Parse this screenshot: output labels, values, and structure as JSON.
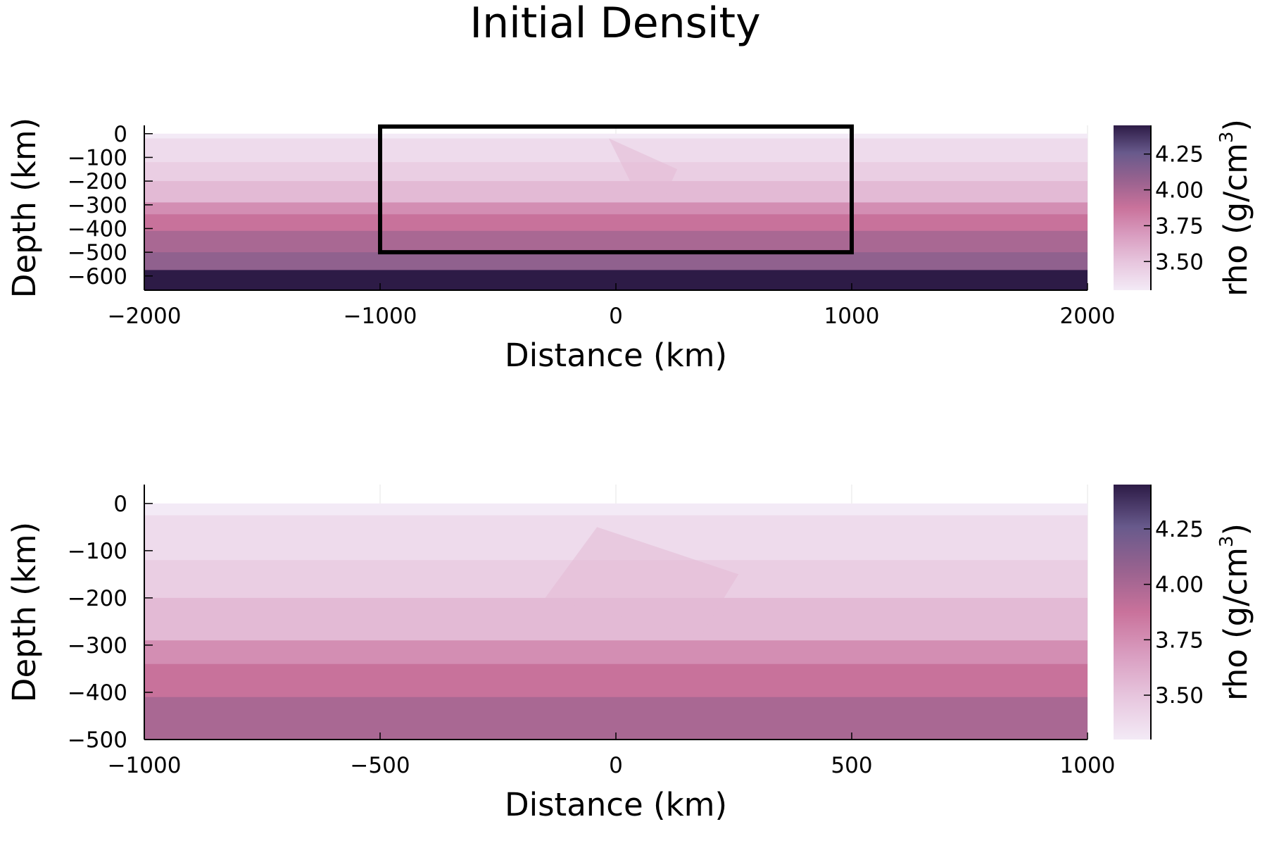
{
  "chart_data": {
    "type": "heatmap",
    "title": "Initial Density",
    "colormap": [
      "#f3eaf6",
      "#e7c6de",
      "#d99dc0",
      "#c9729b",
      "#98628f",
      "#685a8c",
      "#2d1b46"
    ],
    "color_range": [
      3.3,
      4.45
    ],
    "panels": [
      {
        "xlabel": "Distance (km)",
        "ylabel": "Depth (km)",
        "colorbar_label": "rho (g/cm",
        "colorbar_label_sup": "3",
        "colorbar_label_end": ")",
        "xlim": [
          -2000,
          2000
        ],
        "ylim": [
          -660,
          35
        ],
        "x_ticks": [
          -2000,
          -1000,
          0,
          1000,
          2000
        ],
        "x_tick_labels": [
          "−2000",
          "−1000",
          "0",
          "1000",
          "2000"
        ],
        "y_ticks": [
          0,
          -100,
          -200,
          -300,
          -400,
          -500,
          -600
        ],
        "y_tick_labels": [
          "0",
          "−100",
          "−200",
          "−300",
          "−400",
          "−500",
          "−600"
        ],
        "colorbar_ticks": [
          4.25,
          4.0,
          3.75,
          3.5
        ],
        "colorbar_tick_labels": [
          "4.25",
          "4.00",
          "3.75",
          "3.50"
        ],
        "domain": {
          "x": [
            -2000,
            2000
          ],
          "y": [
            -660,
            0
          ]
        },
        "layers": [
          {
            "top": 0,
            "bottom": -20,
            "rho": 3.3
          },
          {
            "top": -20,
            "bottom": -120,
            "rho": 3.38
          },
          {
            "top": -120,
            "bottom": -200,
            "rho": 3.45
          },
          {
            "top": -200,
            "bottom": -290,
            "rho": 3.55
          },
          {
            "top": -290,
            "bottom": -340,
            "rho": 3.75
          },
          {
            "top": -340,
            "bottom": -410,
            "rho": 3.88
          },
          {
            "top": -410,
            "bottom": -500,
            "rho": 4.0
          },
          {
            "top": -500,
            "bottom": -575,
            "rho": 4.1
          },
          {
            "top": -575,
            "bottom": -660,
            "rho": 4.45
          }
        ],
        "anomaly": [
          [
            -30,
            -20
          ],
          [
            260,
            -150
          ],
          [
            200,
            -280
          ],
          [
            60,
            -200
          ],
          [
            -30,
            -20
          ]
        ],
        "anomaly_rho": 3.55,
        "box": {
          "x": [
            -1000,
            1000
          ],
          "y": [
            -500,
            30
          ]
        }
      },
      {
        "xlabel": "Distance (km)",
        "ylabel": "Depth (km)",
        "colorbar_label": "rho (g/cm",
        "colorbar_label_sup": "3",
        "colorbar_label_end": ")",
        "xlim": [
          -1000,
          1000
        ],
        "ylim": [
          -500,
          40
        ],
        "x_ticks": [
          -1000,
          -500,
          0,
          500,
          1000
        ],
        "x_tick_labels": [
          "−1000",
          "−500",
          "0",
          "500",
          "1000"
        ],
        "y_ticks": [
          0,
          -100,
          -200,
          -300,
          -400,
          -500
        ],
        "y_tick_labels": [
          "0",
          "−100",
          "−200",
          "−300",
          "−400",
          "−500"
        ],
        "colorbar_ticks": [
          4.25,
          4.0,
          3.75,
          3.5
        ],
        "colorbar_tick_labels": [
          "4.25",
          "4.00",
          "3.75",
          "3.50"
        ],
        "domain": {
          "x": [
            -1000,
            1000
          ],
          "y": [
            -500,
            0
          ]
        },
        "layers": [
          {
            "top": 0,
            "bottom": -25,
            "rho": 3.3
          },
          {
            "top": -25,
            "bottom": -120,
            "rho": 3.38
          },
          {
            "top": -120,
            "bottom": -200,
            "rho": 3.45
          },
          {
            "top": -200,
            "bottom": -290,
            "rho": 3.55
          },
          {
            "top": -290,
            "bottom": -340,
            "rho": 3.75
          },
          {
            "top": -340,
            "bottom": -410,
            "rho": 3.88
          },
          {
            "top": -410,
            "bottom": -500,
            "rho": 4.0
          }
        ],
        "anomaly": [
          [
            -40,
            -50
          ],
          [
            260,
            -150
          ],
          [
            180,
            -280
          ],
          [
            -150,
            -200
          ],
          [
            -40,
            -50
          ]
        ],
        "anomaly_rho": 3.55
      }
    ]
  }
}
